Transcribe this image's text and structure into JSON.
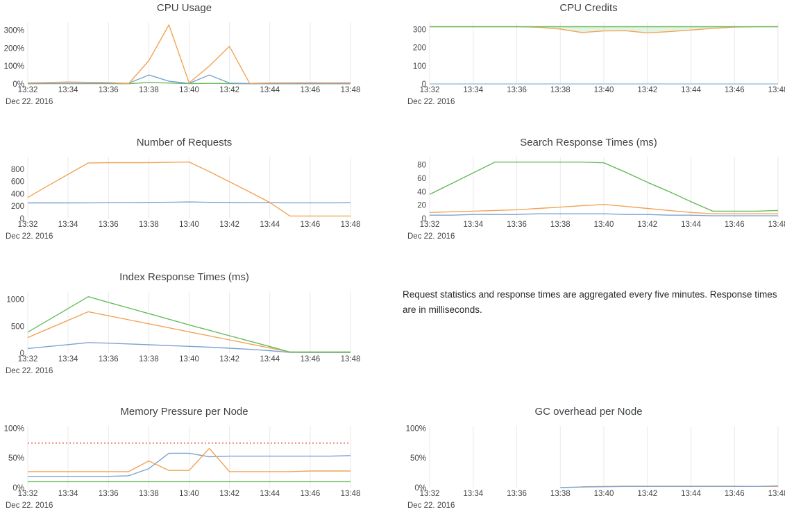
{
  "annotation": {
    "text": "Request statistics and response times are aggregated every five minutes. Response times are in milliseconds."
  },
  "colors": {
    "blue": "#7ba3cf",
    "orange": "#f2a356",
    "green": "#66bb5c",
    "threshold_red": "#ee8383",
    "gridline": "#e9e9e9",
    "band_green": "rgba(110,190,100,0.18)",
    "title_text": "#3f4347",
    "tick_text": "#444444"
  },
  "chart_data": [
    {
      "type": "line",
      "title": "CPU Usage",
      "date_label": "Dec 22. 2016",
      "x_ticks": [
        "13:32",
        "13:34",
        "13:36",
        "13:38",
        "13:40",
        "13:42",
        "13:44",
        "13:46",
        "13:48"
      ],
      "x_range": [
        0,
        16
      ],
      "ylim": [
        0,
        345
      ],
      "grid": "vertical",
      "legend": "none",
      "y_ticks": [
        {
          "v": 0,
          "label": "0%"
        },
        {
          "v": 100,
          "label": "100%"
        },
        {
          "v": 200,
          "label": "200%"
        },
        {
          "v": 300,
          "label": "300%"
        }
      ],
      "series": [
        {
          "name": "series-green",
          "color": "#66bb5c",
          "values": [
            1,
            2,
            2,
            2,
            2,
            1,
            8,
            5,
            2,
            3,
            2,
            1,
            1,
            1,
            1,
            1,
            1
          ]
        },
        {
          "name": "series-blue",
          "color": "#7ba3cf",
          "values": [
            2,
            3,
            3,
            3,
            3,
            4,
            50,
            15,
            3,
            50,
            5,
            2,
            2,
            2,
            2,
            2,
            2
          ]
        },
        {
          "name": "series-orange",
          "color": "#f2a356",
          "values": [
            6,
            8,
            11,
            9,
            8,
            2,
            130,
            330,
            6,
            100,
            210,
            3,
            6,
            6,
            7,
            6,
            7
          ]
        }
      ]
    },
    {
      "type": "line",
      "title": "CPU Credits",
      "date_label": "Dec 22. 2016",
      "x_ticks": [
        "13:32",
        "13:34",
        "13:36",
        "13:38",
        "13:40",
        "13:42",
        "13:44",
        "13:46",
        "13:48"
      ],
      "x_range": [
        0,
        16
      ],
      "ylim": [
        0,
        340
      ],
      "grid": "vertical",
      "legend": "none",
      "y_ticks": [
        {
          "v": 0,
          "label": "0"
        },
        {
          "v": 100,
          "label": "100"
        },
        {
          "v": 200,
          "label": "200"
        },
        {
          "v": 300,
          "label": "300"
        }
      ],
      "band": {
        "upper": 2,
        "lower": 1,
        "color": "rgba(110,190,100,0.18)"
      },
      "series": [
        {
          "name": "series-blue",
          "color": "#9fc2dd",
          "values": [
            0,
            0,
            0,
            0,
            0,
            0,
            0,
            0,
            0,
            0,
            0,
            0,
            0,
            0,
            0,
            0,
            0
          ]
        },
        {
          "name": "series-orange",
          "color": "#f2a356",
          "values": [
            315,
            315,
            315,
            315,
            315,
            312,
            302,
            283,
            292,
            293,
            281,
            288,
            297,
            306,
            313,
            315,
            315
          ]
        },
        {
          "name": "series-green",
          "color": "#66bb5c",
          "values": [
            315,
            315,
            315,
            315,
            315,
            315,
            315,
            315,
            315,
            315,
            315,
            315,
            315,
            315,
            315,
            315,
            315
          ]
        }
      ]
    },
    {
      "type": "line",
      "title": "Number of Requests",
      "date_label": "Dec 22. 2016",
      "x_ticks": [
        "13:32",
        "13:34",
        "13:36",
        "13:38",
        "13:40",
        "13:42",
        "13:44",
        "13:46",
        "13:48"
      ],
      "x_range": [
        0,
        16
      ],
      "ylim": [
        0,
        1000
      ],
      "grid": "vertical",
      "legend": "none",
      "y_ticks": [
        {
          "v": 0,
          "label": "0"
        },
        {
          "v": 200,
          "label": "200"
        },
        {
          "v": 400,
          "label": "400"
        },
        {
          "v": 600,
          "label": "600"
        },
        {
          "v": 800,
          "label": "800"
        }
      ],
      "series": [
        {
          "name": "series-blue",
          "color": "#7ba3cf",
          "values": [
            253,
            253,
            253,
            254,
            255,
            256,
            258,
            263,
            268,
            262,
            258,
            256,
            255,
            254,
            254,
            254,
            255
          ]
        },
        {
          "name": "series-orange",
          "color": "#f2a356",
          "values": [
            340,
            530,
            715,
            900,
            905,
            905,
            905,
            910,
            915,
            760,
            595,
            430,
            260,
            40,
            40,
            40,
            40
          ]
        }
      ]
    },
    {
      "type": "line",
      "title": "Search Response Times (ms)",
      "date_label": "Dec 22. 2016",
      "x_ticks": [
        "13:32",
        "13:34",
        "13:36",
        "13:38",
        "13:40",
        "13:42",
        "13:44",
        "13:46",
        "13:48"
      ],
      "x_range": [
        0,
        16
      ],
      "ylim": [
        0,
        92
      ],
      "grid": "vertical",
      "legend": "none",
      "y_ticks": [
        {
          "v": 0,
          "label": "0"
        },
        {
          "v": 20,
          "label": "20"
        },
        {
          "v": 40,
          "label": "40"
        },
        {
          "v": 60,
          "label": "60"
        },
        {
          "v": 80,
          "label": "80"
        }
      ],
      "series": [
        {
          "name": "series-blue",
          "color": "#7ba3cf",
          "values": [
            5,
            5,
            6,
            6,
            6,
            7,
            7,
            7,
            7,
            6,
            6,
            5,
            5,
            4,
            4,
            4,
            4
          ]
        },
        {
          "name": "series-orange",
          "color": "#f2a356",
          "values": [
            9,
            10,
            11,
            12,
            13,
            15,
            17,
            19,
            21,
            18,
            15,
            12,
            9,
            7,
            7,
            7,
            7
          ]
        },
        {
          "name": "series-green",
          "color": "#66bb5c",
          "values": [
            36,
            52,
            68,
            84,
            84,
            84,
            84,
            84,
            83,
            69,
            54,
            40,
            25,
            11,
            11,
            11,
            12
          ]
        }
      ]
    },
    {
      "type": "line",
      "title": "Index Response Times (ms)",
      "date_label": "Dec 22. 2016",
      "x_ticks": [
        "13:32",
        "13:34",
        "13:36",
        "13:38",
        "13:40",
        "13:42",
        "13:44",
        "13:46",
        "13:48"
      ],
      "x_range": [
        0,
        16
      ],
      "ylim": [
        0,
        1150
      ],
      "grid": "vertical",
      "legend": "none",
      "y_ticks": [
        {
          "v": 0,
          "label": "0"
        },
        {
          "v": 500,
          "label": "500"
        },
        {
          "v": 1000,
          "label": "1000"
        }
      ],
      "series": [
        {
          "name": "series-blue",
          "color": "#7ba3cf",
          "values": [
            85,
            122,
            158,
            195,
            185,
            170,
            155,
            140,
            125,
            110,
            90,
            70,
            45,
            12,
            10,
            10,
            10
          ]
        },
        {
          "name": "series-orange",
          "color": "#f2a356",
          "values": [
            290,
            450,
            610,
            770,
            695,
            620,
            545,
            470,
            395,
            320,
            245,
            170,
            95,
            20,
            20,
            20,
            20
          ]
        },
        {
          "name": "series-green",
          "color": "#66bb5c",
          "values": [
            390,
            610,
            830,
            1050,
            945,
            840,
            735,
            630,
            525,
            424,
            323,
            222,
            121,
            20,
            20,
            20,
            20
          ]
        }
      ]
    },
    {
      "type": "line",
      "title": "Memory Pressure per Node",
      "date_label": "Dec 22. 2016",
      "x_ticks": [
        "13:32",
        "13:34",
        "13:36",
        "13:38",
        "13:40",
        "13:42",
        "13:44",
        "13:46",
        "13:48"
      ],
      "x_range": [
        0,
        16
      ],
      "ylim": [
        0,
        104
      ],
      "grid": "vertical",
      "legend": "none",
      "y_ticks": [
        {
          "v": 0,
          "label": "0%"
        },
        {
          "v": 50,
          "label": "50%"
        },
        {
          "v": 100,
          "label": "100%"
        }
      ],
      "series": [
        {
          "name": "series-green",
          "color": "#66bb5c",
          "values": [
            10,
            10,
            10,
            10,
            10,
            10,
            10,
            10,
            10,
            10,
            10,
            10,
            10,
            10,
            10,
            10,
            10
          ]
        },
        {
          "name": "threshold-dotted-red",
          "color": "#ee8383",
          "dash": true,
          "values": [
            75,
            75,
            75,
            75,
            75,
            75,
            75,
            75,
            75,
            75,
            75,
            75,
            75,
            75,
            75,
            75,
            75
          ]
        },
        {
          "name": "series-blue",
          "color": "#7ba3cf",
          "values": [
            19,
            19,
            19,
            19,
            19,
            20,
            32,
            58,
            58,
            52,
            53,
            53,
            53,
            53,
            53,
            53,
            54
          ]
        },
        {
          "name": "series-orange",
          "color": "#f2a356",
          "values": [
            27,
            27,
            27,
            27,
            27,
            27,
            45,
            29,
            29,
            66,
            27,
            27,
            27,
            27,
            28,
            28,
            28
          ]
        }
      ]
    },
    {
      "type": "line",
      "title": "GC overhead per Node",
      "date_label": "Dec 22. 2016",
      "x_ticks": [
        "13:32",
        "13:34",
        "13:36",
        "13:38",
        "13:40",
        "13:42",
        "13:44",
        "13:46",
        "13:48"
      ],
      "x_range": [
        0,
        16
      ],
      "ylim": [
        0,
        104
      ],
      "grid": "vertical",
      "legend": "none",
      "y_ticks": [
        {
          "v": 0,
          "label": "0%"
        },
        {
          "v": 50,
          "label": "50%"
        },
        {
          "v": 100,
          "label": "100%"
        }
      ],
      "series": [
        {
          "name": "series-orange",
          "color": "#f2a356",
          "values": [
            null,
            null,
            null,
            null,
            null,
            null,
            null,
            1.5,
            2,
            2.5,
            2.5,
            2.5,
            2.5,
            2.5,
            2.5,
            2,
            2
          ]
        },
        {
          "name": "series-blue",
          "color": "#7ba3cf",
          "values": [
            null,
            null,
            null,
            null,
            null,
            null,
            0,
            1,
            1.5,
            2,
            2,
            2,
            2,
            2,
            2,
            2,
            3
          ]
        }
      ]
    }
  ]
}
